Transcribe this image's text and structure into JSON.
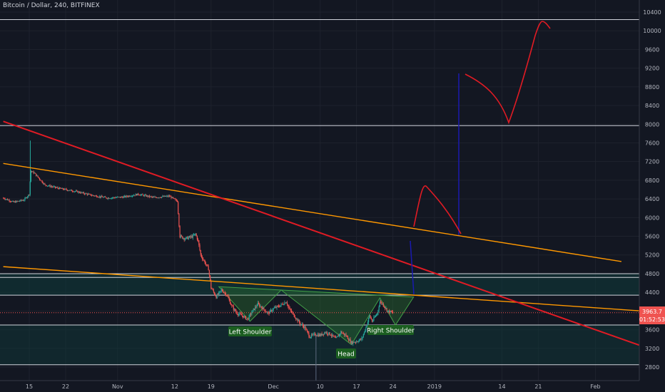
{
  "header": {
    "title": "Bitcoin / Dollar, 240, BITFINEX"
  },
  "chart_data": {
    "type": "candlestick",
    "symbol": "Bitcoin / Dollar",
    "interval": "240",
    "exchange": "BITFINEX",
    "y_axis": {
      "ticks": [
        2800,
        3200,
        3600,
        4000,
        4400,
        4800,
        5200,
        5600,
        6000,
        6400,
        6800,
        7200,
        7600,
        8000,
        8400,
        8800,
        9200,
        9600,
        10000,
        10400
      ],
      "range": [
        2600,
        10600
      ]
    },
    "x_axis": {
      "ticks": [
        {
          "label": "15",
          "day": 0
        },
        {
          "label": "22",
          "day": 7
        },
        {
          "label": "Nov",
          "day": 17
        },
        {
          "label": "12",
          "day": 28
        },
        {
          "label": "19",
          "day": 35
        },
        {
          "label": "Dec",
          "day": 47
        },
        {
          "label": "10",
          "day": 56
        },
        {
          "label": "17",
          "day": 63
        },
        {
          "label": "24",
          "day": 70
        },
        {
          "label": "2019",
          "day": 78
        },
        {
          "label": "14",
          "day": 91
        },
        {
          "label": "21",
          "day": 98
        },
        {
          "label": "Feb",
          "day": 109
        }
      ]
    },
    "price_path": [
      [
        -5,
        6420
      ],
      [
        -3,
        6330
      ],
      [
        -1,
        6380
      ],
      [
        0,
        6500
      ],
      [
        0.3,
        7000
      ],
      [
        1,
        6950
      ],
      [
        3,
        6700
      ],
      [
        6,
        6620
      ],
      [
        9,
        6560
      ],
      [
        12,
        6480
      ],
      [
        15,
        6420
      ],
      [
        18,
        6440
      ],
      [
        21,
        6500
      ],
      [
        24,
        6430
      ],
      [
        27,
        6460
      ],
      [
        28.5,
        6350
      ],
      [
        29,
        5600
      ],
      [
        30,
        5550
      ],
      [
        31.5,
        5600
      ],
      [
        32,
        5650
      ],
      [
        32.5,
        5500
      ],
      [
        33,
        5200
      ],
      [
        34.5,
        4900
      ],
      [
        35,
        4500
      ],
      [
        36,
        4300
      ],
      [
        37,
        4450
      ],
      [
        38,
        4350
      ],
      [
        39,
        4100
      ],
      [
        40,
        3950
      ],
      [
        41,
        3900
      ],
      [
        42,
        3820
      ],
      [
        43,
        4000
      ],
      [
        44,
        4150
      ],
      [
        45,
        4050
      ],
      [
        46,
        3950
      ],
      [
        47,
        4050
      ],
      [
        48,
        4100
      ],
      [
        49.5,
        4200
      ],
      [
        50,
        4050
      ],
      [
        51,
        3900
      ],
      [
        52,
        3750
      ],
      [
        53,
        3650
      ],
      [
        54,
        3450
      ],
      [
        55,
        3500
      ],
      [
        56,
        3480
      ],
      [
        57,
        3550
      ],
      [
        58,
        3500
      ],
      [
        59,
        3400
      ],
      [
        60,
        3550
      ],
      [
        61,
        3470
      ],
      [
        62,
        3320
      ],
      [
        63,
        3350
      ],
      [
        64,
        3400
      ],
      [
        65,
        3700
      ],
      [
        65.5,
        3900
      ],
      [
        66,
        3780
      ],
      [
        67,
        3950
      ],
      [
        67.5,
        4200
      ],
      [
        68,
        4150
      ],
      [
        69,
        4000
      ],
      [
        70,
        3960
      ]
    ],
    "current_price": {
      "value": "3963.7",
      "countdown": "01:52:53"
    },
    "horizontal_levels": [
      10240,
      7970,
      4800,
      4720,
      4340,
      3700,
      2850
    ],
    "trendlines": [
      {
        "color": "#ff9800",
        "from": {
          "day": -5,
          "price": 7160
        },
        "to": {
          "day": 114,
          "price": 5060
        }
      },
      {
        "color": "#ff9800",
        "from": {
          "day": -5,
          "price": 4950
        },
        "to": {
          "day": 118,
          "price": 4000
        }
      },
      {
        "color": "#e01b24",
        "from": {
          "day": -5,
          "price": 8060
        },
        "to": {
          "day": 121,
          "price": 3130
        }
      }
    ],
    "pattern_labels": [
      "Left Shoulder",
      "Head",
      "Right Shoulder"
    ],
    "colors": {
      "background": "#131722",
      "up": "#26a69a",
      "down": "#ef5350",
      "price_line": "#ef5350",
      "drawing_red": "#e01b24",
      "drawing_blue": "#1a1ab0",
      "pattern_fill": "#2e7d32"
    }
  }
}
